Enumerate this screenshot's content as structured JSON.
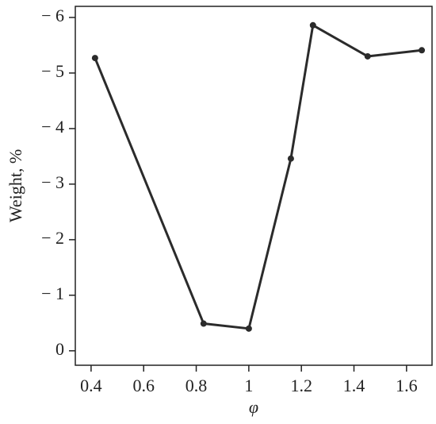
{
  "chart_data": {
    "type": "line",
    "x_label": "φ",
    "y_label": "Weight, %",
    "x": [
      0.415,
      0.828,
      1.0,
      1.16,
      1.244,
      1.452,
      1.658
    ],
    "series": [
      {
        "color": "#2b2b2b",
        "values": [
          -5.27,
          -0.49,
          -0.4,
          -3.46,
          -5.86,
          -5.3,
          -5.41
        ]
      }
    ],
    "xlim": [
      0.34,
      1.697
    ],
    "ylim": [
      0.26,
      -6.2
    ],
    "xticks": [
      0.4,
      0.6,
      0.8,
      1,
      1.2,
      1.4,
      1.6
    ],
    "yticks": [
      {
        "value": -6,
        "label": "− 6"
      },
      {
        "value": -5,
        "label": "− 5"
      },
      {
        "value": -4,
        "label": "− 4"
      },
      {
        "value": -3,
        "label": "− 3"
      },
      {
        "value": -2,
        "label": "− 2"
      },
      {
        "value": -1,
        "label": "− 1"
      },
      0
    ],
    "grid": false
  }
}
